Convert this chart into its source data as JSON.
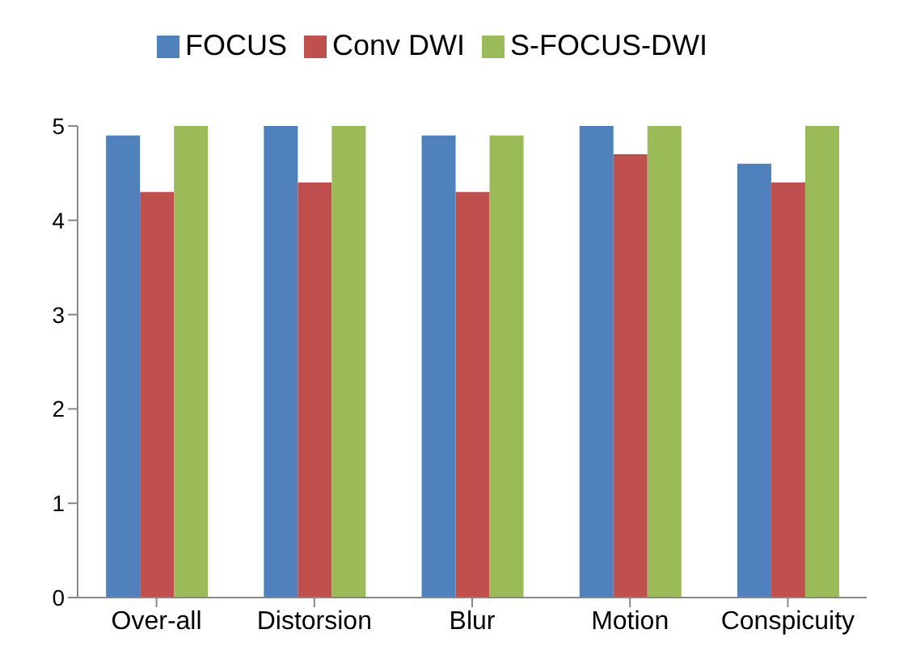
{
  "chart_data": {
    "type": "bar",
    "categories": [
      "Over-all",
      "Distorsion",
      "Blur",
      "Motion",
      "Conspicuity"
    ],
    "series": [
      {
        "name": "FOCUS",
        "color": "#4f81bd",
        "values": [
          4.9,
          5,
          4.9,
          5,
          4.6
        ]
      },
      {
        "name": "Conv DWI",
        "color": "#c0504d",
        "values": [
          4.3,
          4.4,
          4.3,
          4.7,
          4.4
        ]
      },
      {
        "name": "S-FOCUS-DWI",
        "color": "#9bbb59",
        "values": [
          5,
          5,
          4.9,
          5,
          5
        ]
      }
    ],
    "ylim": [
      0,
      5
    ],
    "yticks": [
      0,
      1,
      2,
      3,
      4,
      5
    ],
    "grid": false,
    "legend": "top"
  }
}
